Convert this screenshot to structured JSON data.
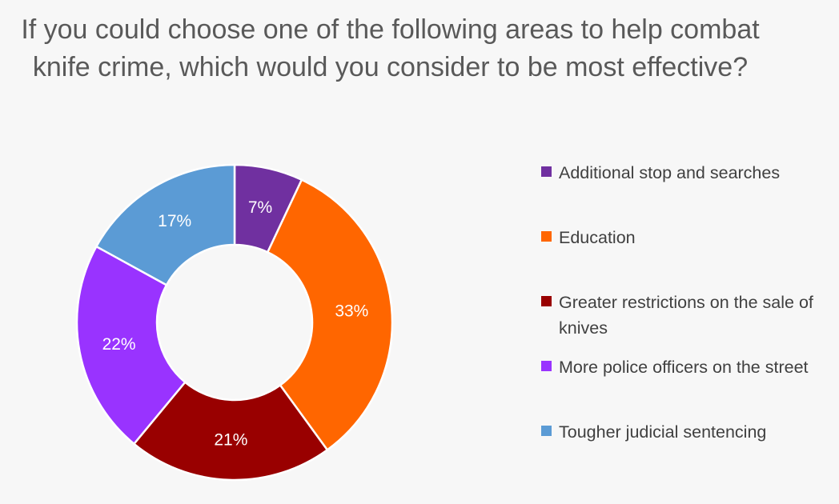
{
  "chart_data": {
    "type": "pie",
    "variant": "donut",
    "title": "If you could choose one of the following areas to help combat knife crime, which would you consider to be most effective?",
    "value_unit": "%",
    "legend_position": "right",
    "slices": [
      {
        "label": "Additional stop and searches",
        "value": 7,
        "display": "7%",
        "color": "#7030a0"
      },
      {
        "label": "Education",
        "value": 33,
        "display": "33%",
        "color": "#ff6600"
      },
      {
        "label": "Greater restrictions on the sale of knives",
        "value": 21,
        "display": "21%",
        "color": "#990000"
      },
      {
        "label": "More police officers on the street",
        "value": 22,
        "display": "22%",
        "color": "#9933ff"
      },
      {
        "label": "Tougher judicial sentencing",
        "value": 17,
        "display": "17%",
        "color": "#5b9bd5"
      }
    ]
  }
}
